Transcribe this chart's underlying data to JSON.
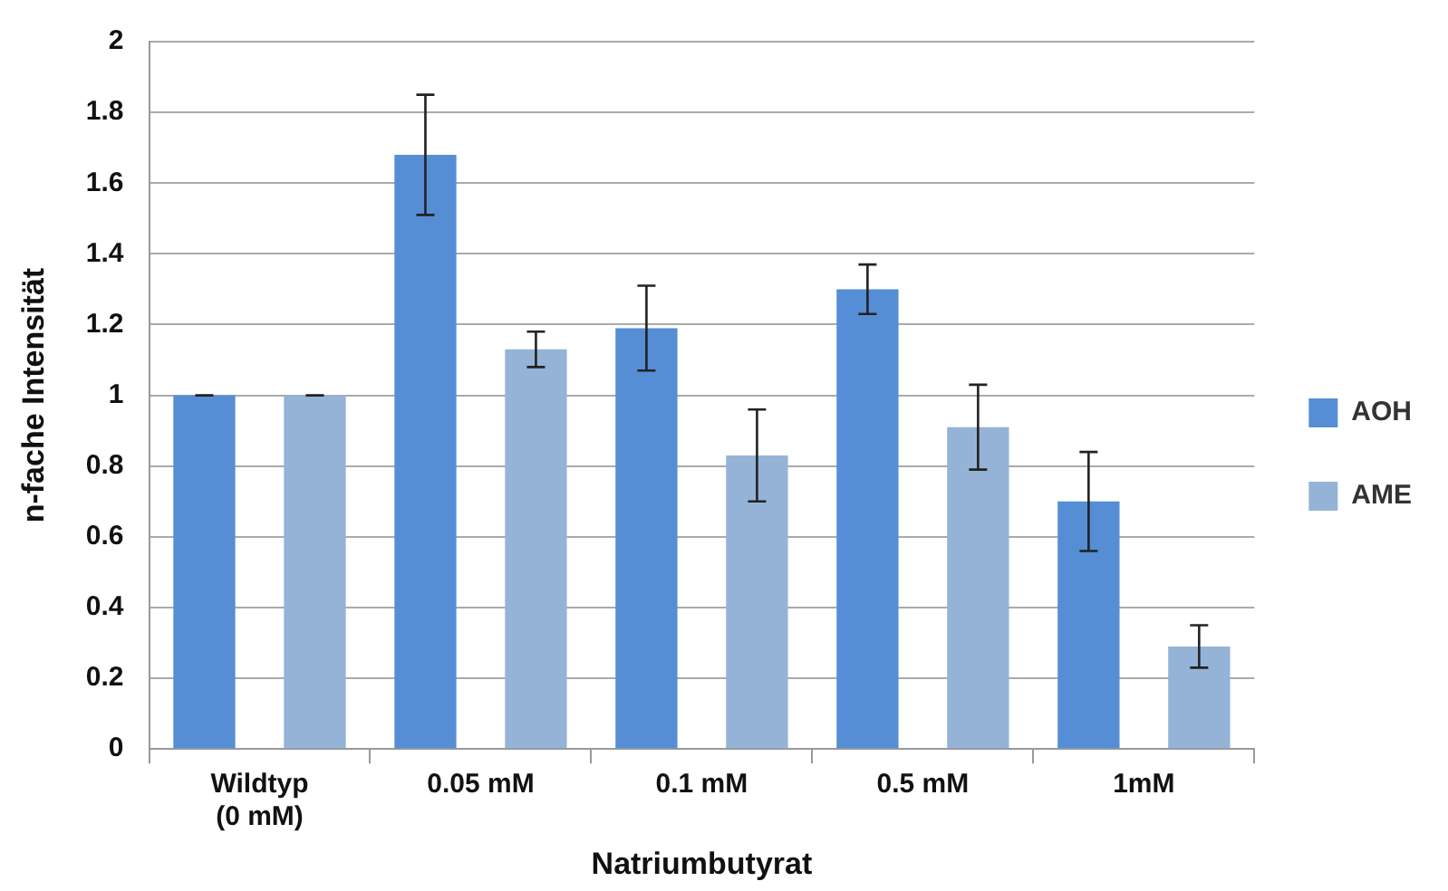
{
  "chart_data": {
    "type": "bar",
    "xlabel": "Natriumbutyrat",
    "ylabel": "n-fache Intensität",
    "categories": [
      [
        "Wildtyp",
        "(0 mM)"
      ],
      "0.05 mM",
      "0.1 mM",
      "0.5 mM",
      "1mM"
    ],
    "series": [
      {
        "name": "AOH",
        "color": "#558ed5",
        "values": [
          1,
          1.68,
          1.19,
          1.3,
          0.7
        ],
        "errors": [
          0,
          0.17,
          0.12,
          0.07,
          0.14
        ]
      },
      {
        "name": "AME",
        "color": "#95b3d7",
        "values": [
          1,
          1.13,
          0.83,
          0.91,
          0.29
        ],
        "errors": [
          0,
          0.05,
          0.13,
          0.12,
          0.06
        ]
      }
    ],
    "ylim": [
      0,
      2
    ],
    "yticks": [
      0,
      0.2,
      0.4,
      0.6,
      0.8,
      1,
      1.2,
      1.4,
      1.6,
      1.8,
      2
    ],
    "grid": "y",
    "legend": "right"
  }
}
